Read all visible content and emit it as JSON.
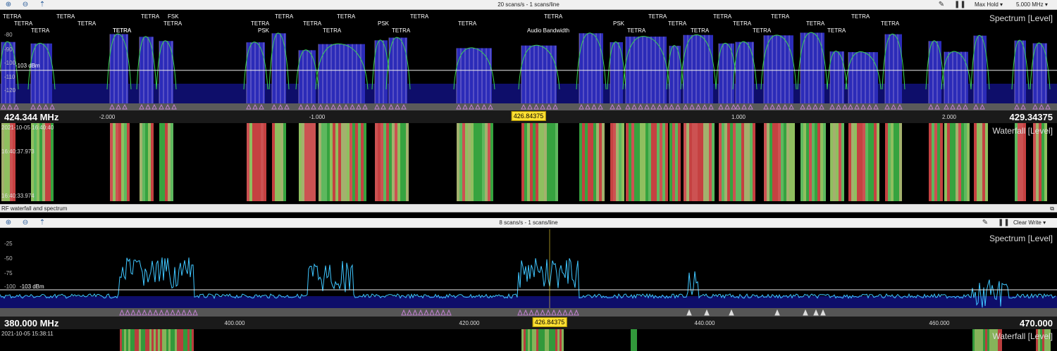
{
  "top": {
    "toolbar": {
      "zoom_in": "⊕",
      "zoom_out": "⊖",
      "marker": "⇡",
      "scan_rate": "20 scans/s - 1 scans/line",
      "detector": "Max Hold",
      "span": "5.000 MHz"
    },
    "spectrum_label": "Spectrum [Level]",
    "waterfall_label": "Waterfall [Level]",
    "threshold_label": "-103 dBm",
    "levels": [
      "-80",
      "-90",
      "-100",
      "-110",
      "-120"
    ],
    "freq_start": "424.344  MHz",
    "freq_end": "429.34375",
    "freq_marker": "426.84375",
    "ticks": [
      "-2.000",
      "-1.000",
      "1.000",
      "2.000"
    ],
    "timestamps": [
      "2021-10-05 16:40:40",
      "16:40:37.973",
      "16:40:33.974"
    ],
    "channel_labels": [
      {
        "t": "TETRA"
      },
      {
        "t": "TETRA"
      },
      {
        "t": "TETRA"
      },
      {
        "t": "TETRA"
      },
      {
        "t": "TETRA"
      },
      {
        "t": "TETRA"
      },
      {
        "t": "TETRA"
      },
      {
        "t": "TETRA"
      },
      {
        "t": "TETRA"
      },
      {
        "t": "FSK"
      },
      {
        "t": "TETRA"
      },
      {
        "t": "PSK"
      },
      {
        "t": "TETRA"
      },
      {
        "t": "TETRA"
      },
      {
        "t": "TETRA"
      },
      {
        "t": "TETRA"
      },
      {
        "t": "PSK"
      },
      {
        "t": "TETRA"
      },
      {
        "t": "TETRA"
      },
      {
        "t": "TETRA"
      },
      {
        "t": "Audio Bandwidth"
      },
      {
        "t": "TETRA"
      },
      {
        "t": "PSK"
      },
      {
        "t": "TETRA"
      },
      {
        "t": "TETRA"
      },
      {
        "t": "TETRA"
      },
      {
        "t": "TETRA"
      },
      {
        "t": "TETRA"
      },
      {
        "t": "TETRA"
      },
      {
        "t": "TETRA"
      },
      {
        "t": "TETRA"
      },
      {
        "t": "TETRA"
      },
      {
        "t": "TETRA"
      },
      {
        "t": "TETRA"
      },
      {
        "t": "TETRA"
      }
    ]
  },
  "panel_title": "RF waterfall and spectrum",
  "bottom": {
    "toolbar": {
      "zoom_in": "⊕",
      "zoom_out": "⊖",
      "marker": "⇡",
      "scan_rate": "8 scans/s - 1 scans/line",
      "detector": "Clear Write"
    },
    "spectrum_label": "Spectrum [Level]",
    "waterfall_label": "Waterfall [Level]",
    "threshold_label": "-103 dBm",
    "levels": [
      "-25",
      "-50",
      "-75",
      "-100"
    ],
    "freq_start": "380.000  MHz",
    "freq_end": "470.000",
    "freq_marker": "426.84375",
    "ticks": [
      "400.000",
      "420.000",
      "440.000",
      "460.000"
    ],
    "timestamp": "2021-10-05 15:38:11"
  },
  "colors": {
    "spectrum_fill": "#2b2bb8",
    "spectrum_line": "#39d353",
    "trace_bottom": "#3fc6ff",
    "marker": "#ffe033"
  }
}
